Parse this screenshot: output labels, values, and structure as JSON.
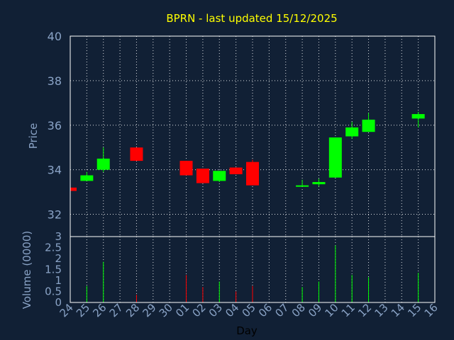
{
  "chart_data": {
    "type": "candlestick",
    "title": "BPRN - last updated 15/12/2025",
    "xlabel": "Day",
    "colors": {
      "up": "#00ff00",
      "down": "#ff0000",
      "title": "#ffff00",
      "axis_text": "#8aa3c6",
      "background": "#112035"
    },
    "x": [
      "24",
      "25",
      "26",
      "27",
      "28",
      "29",
      "30",
      "01",
      "02",
      "03",
      "04",
      "05",
      "06",
      "07",
      "08",
      "09",
      "10",
      "11",
      "12",
      "13",
      "14",
      "15",
      "16"
    ],
    "price_panel": {
      "ylabel": "Price",
      "ylim": [
        31,
        40
      ],
      "yticks": [
        32,
        34,
        36,
        38,
        40
      ],
      "grid": true,
      "candles": [
        {
          "day": "24",
          "open": 33.2,
          "close": 33.05,
          "high": 33.2,
          "low": 33.05
        },
        {
          "day": "25",
          "open": 33.5,
          "close": 33.75,
          "high": 33.9,
          "low": 33.5
        },
        {
          "day": "26",
          "open": 34.0,
          "close": 34.5,
          "high": 35.0,
          "low": 33.9
        },
        {
          "day": "28",
          "open": 35.0,
          "close": 34.4,
          "high": 35.0,
          "low": 34.4
        },
        {
          "day": "01",
          "open": 34.4,
          "close": 33.75,
          "high": 34.4,
          "low": 33.75
        },
        {
          "day": "02",
          "open": 34.05,
          "close": 33.4,
          "high": 34.05,
          "low": 33.4
        },
        {
          "day": "03",
          "open": 33.5,
          "close": 33.95,
          "high": 33.95,
          "low": 33.45
        },
        {
          "day": "04",
          "open": 34.1,
          "close": 33.8,
          "high": 34.1,
          "low": 33.8
        },
        {
          "day": "05",
          "open": 34.35,
          "close": 33.3,
          "high": 34.45,
          "low": 33.3
        },
        {
          "day": "08",
          "open": 33.25,
          "close": 33.3,
          "high": 33.55,
          "low": 33.25
        },
        {
          "day": "09",
          "open": 33.35,
          "close": 33.45,
          "high": 33.6,
          "low": 33.25
        },
        {
          "day": "10",
          "open": 33.65,
          "close": 35.45,
          "high": 35.45,
          "low": 33.65
        },
        {
          "day": "11",
          "open": 35.5,
          "close": 35.9,
          "high": 36.15,
          "low": 35.4
        },
        {
          "day": "12",
          "open": 35.7,
          "close": 36.25,
          "high": 36.55,
          "low": 35.7
        },
        {
          "day": "15",
          "open": 36.3,
          "close": 36.5,
          "high": 36.6,
          "low": 35.9
        }
      ]
    },
    "volume_panel": {
      "ylabel": "Volume (0000)",
      "ylim": [
        0,
        3
      ],
      "yticks": [
        "0",
        "0.5",
        "1",
        "1.5",
        "2",
        "2.5",
        "3"
      ],
      "bars": [
        {
          "day": "25",
          "value": 0.75,
          "direction": "up"
        },
        {
          "day": "26",
          "value": 1.85,
          "direction": "up"
        },
        {
          "day": "28",
          "value": 0.35,
          "direction": "down"
        },
        {
          "day": "01",
          "value": 1.25,
          "direction": "down"
        },
        {
          "day": "02",
          "value": 0.7,
          "direction": "down"
        },
        {
          "day": "03",
          "value": 0.95,
          "direction": "up"
        },
        {
          "day": "04",
          "value": 0.5,
          "direction": "down"
        },
        {
          "day": "05",
          "value": 0.75,
          "direction": "down"
        },
        {
          "day": "08",
          "value": 0.7,
          "direction": "up"
        },
        {
          "day": "09",
          "value": 0.95,
          "direction": "up"
        },
        {
          "day": "10",
          "value": 2.6,
          "direction": "up"
        },
        {
          "day": "11",
          "value": 1.25,
          "direction": "up"
        },
        {
          "day": "12",
          "value": 1.15,
          "direction": "up"
        },
        {
          "day": "15",
          "value": 1.35,
          "direction": "up"
        }
      ]
    }
  }
}
